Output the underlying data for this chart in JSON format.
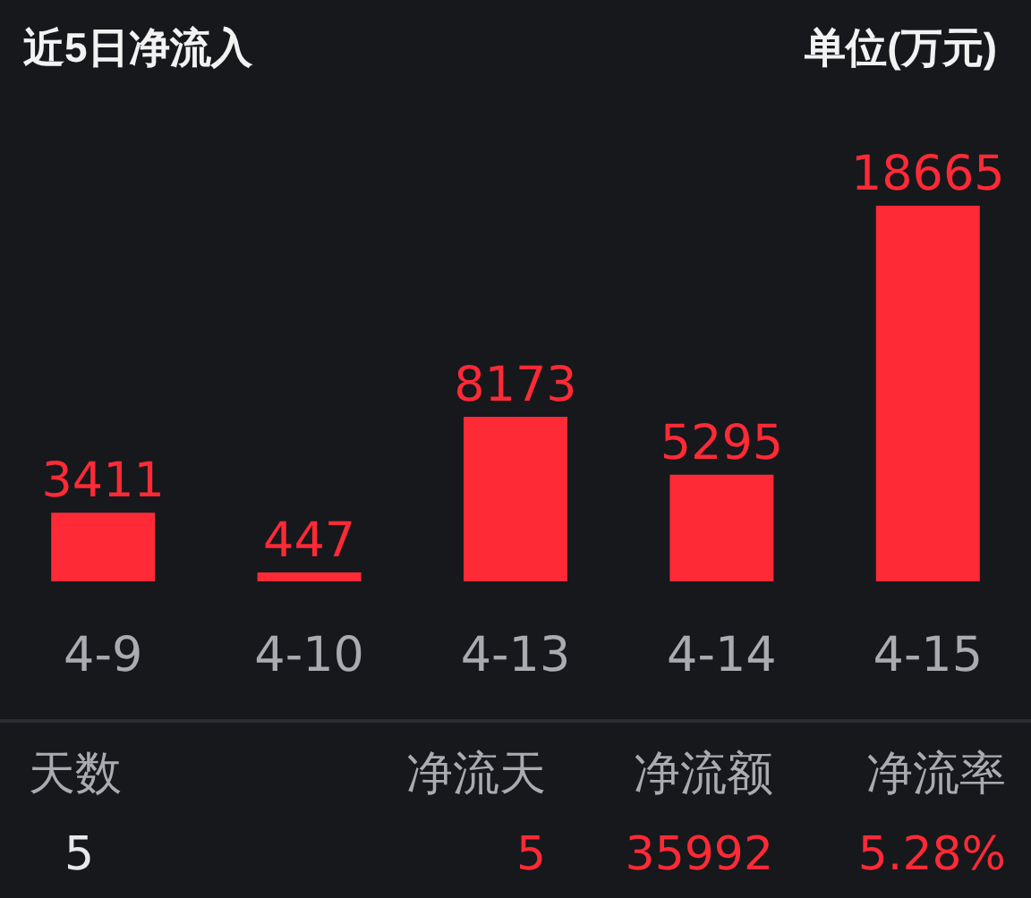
{
  "chart_data": {
    "type": "bar",
    "title": "近5日净流入",
    "ylabel": "单位(万元)",
    "categories": [
      "4-9",
      "4-10",
      "4-13",
      "4-14",
      "4-15"
    ],
    "values": [
      3411,
      447,
      8173,
      5295,
      18665
    ],
    "color": "#fe2a36",
    "data_labels": true,
    "grid": false,
    "annotations": [
      "天数",
      "净流天",
      "净流额",
      "净流率",
      "5",
      "5",
      "35992",
      "5.28%"
    ]
  }
}
